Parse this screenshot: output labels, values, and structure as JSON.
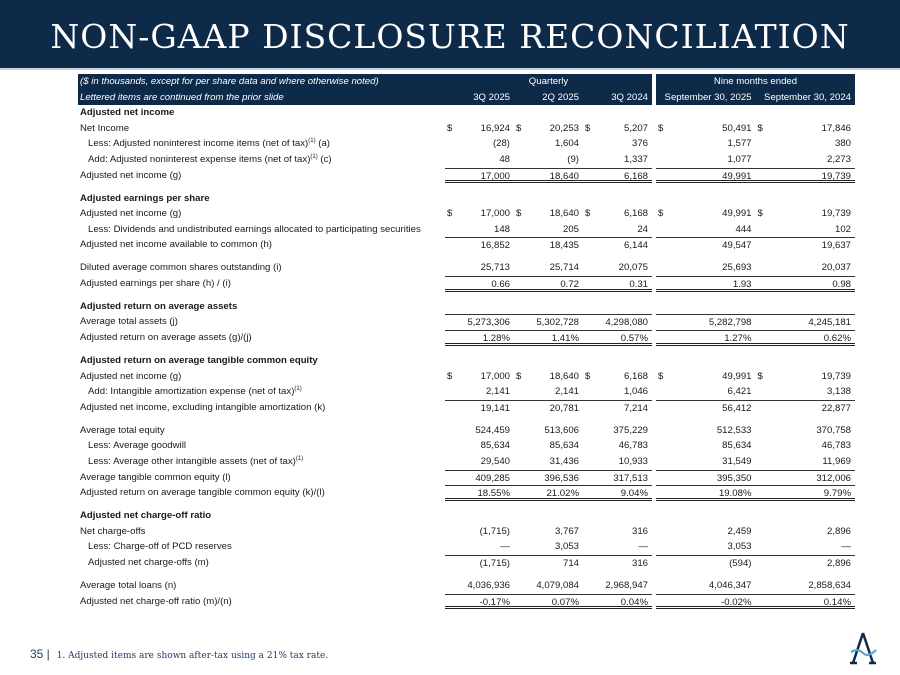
{
  "title": "NON-GAAP DISCLOSURE RECONCILIATION",
  "header": {
    "note1": "($ in thousands, except for per share data and where otherwise noted)",
    "note2": "Lettered items are continued from the prior slide",
    "quarterly": "Quarterly",
    "nine": "Nine months ended",
    "columns": [
      "3Q 2025",
      "2Q 2025",
      "3Q 2024",
      "September 30, 2025",
      "September 30, 2024"
    ]
  },
  "rows": [
    {
      "label": "Adjusted net income",
      "style": "bold"
    },
    {
      "label": "Net Income",
      "dollar": true,
      "values": [
        "16,924",
        "20,253",
        "5,207",
        "50,491",
        "17,846"
      ]
    },
    {
      "label": "Less: Adjusted noninterest income items (net of tax)",
      "sup": "(1)",
      "suffix": " (a)",
      "indent": true,
      "values": [
        "(28)",
        "1,604",
        "376",
        "1,577",
        "380"
      ]
    },
    {
      "label": "Add: Adjusted noninterest expense items (net of tax)",
      "sup": "(1)",
      "suffix": " (c)",
      "indent": true,
      "values": [
        "48",
        "(9)",
        "1,337",
        "1,077",
        "2,273"
      ]
    },
    {
      "label": "Adjusted net income (g)",
      "top": true,
      "dbl": true,
      "values": [
        "17,000",
        "18,640",
        "6,168",
        "49,991",
        "19,739"
      ]
    },
    {
      "spacer": true
    },
    {
      "label": "Adjusted earnings per share",
      "style": "bold"
    },
    {
      "label": "Adjusted net income (g)",
      "dollar": true,
      "values": [
        "17,000",
        "18,640",
        "6,168",
        "49,991",
        "19,739"
      ]
    },
    {
      "label": "Less: Dividends and undistributed earnings allocated to participating securities",
      "indent": true,
      "values": [
        "148",
        "205",
        "24",
        "444",
        "102"
      ]
    },
    {
      "label": "Adjusted net income available to common (h)",
      "top": true,
      "values": [
        "16,852",
        "18,435",
        "6,144",
        "49,547",
        "19,637"
      ]
    },
    {
      "spacer": true
    },
    {
      "label": "Diluted average common shares outstanding (i)",
      "values": [
        "25,713",
        "25,714",
        "20,075",
        "25,693",
        "20,037"
      ]
    },
    {
      "label": "Adjusted earnings per share (h) / (i)",
      "top": true,
      "dbl": true,
      "values": [
        "0.66",
        "0.72",
        "0.31",
        "1.93",
        "0.98"
      ]
    },
    {
      "spacer": true
    },
    {
      "label": "Adjusted return on average assets",
      "style": "bold"
    },
    {
      "label": "Average total assets (j)",
      "top": true,
      "values": [
        "5,273,306",
        "5,302,728",
        "4,298,080",
        "5,282,798",
        "4,245,181"
      ]
    },
    {
      "label": "Adjusted return on average assets (g)/(j)",
      "top": true,
      "dbl": true,
      "values": [
        "1.28%",
        "1.41%",
        "0.57%",
        "1.27%",
        "0.62%"
      ]
    },
    {
      "spacer": true
    },
    {
      "label": "Adjusted return on average tangible common equity",
      "style": "bold"
    },
    {
      "label": "Adjusted net income (g)",
      "dollar": true,
      "values": [
        "17,000",
        "18,640",
        "6,168",
        "49,991",
        "19,739"
      ]
    },
    {
      "label": "Add: Intangible amortization expense (net of tax)",
      "sup": "(1)",
      "indent": true,
      "values": [
        "2,141",
        "2,141",
        "1,046",
        "6,421",
        "3,138"
      ]
    },
    {
      "label": "Adjusted net income, excluding intangible amortization (k)",
      "top": true,
      "values": [
        "19,141",
        "20,781",
        "7,214",
        "56,412",
        "22,877"
      ]
    },
    {
      "spacer": true
    },
    {
      "label": "Average total equity",
      "values": [
        "524,459",
        "513,606",
        "375,229",
        "512,533",
        "370,758"
      ]
    },
    {
      "label": "Less: Average goodwill",
      "indent": true,
      "values": [
        "85,634",
        "85,634",
        "46,783",
        "85,634",
        "46,783"
      ]
    },
    {
      "label": "Less: Average other intangible assets (net of tax)",
      "sup": "(1)",
      "indent": true,
      "values": [
        "29,540",
        "31,436",
        "10,933",
        "31,549",
        "11,969"
      ]
    },
    {
      "label": "Average tangible common equity (l)",
      "top": true,
      "values": [
        "409,285",
        "396,536",
        "317,513",
        "395,350",
        "312,006"
      ]
    },
    {
      "label": "Adjusted return on average tangible common equity (k)/(l)",
      "top": true,
      "dbl": true,
      "values": [
        "18.55%",
        "21.02%",
        "9.04%",
        "19.08%",
        "9.79%"
      ]
    },
    {
      "spacer": true
    },
    {
      "label": "Adjusted net charge-off ratio",
      "style": "bold"
    },
    {
      "label": "Net charge-offs",
      "values": [
        "(1,715)",
        "3,767",
        "316",
        "2,459",
        "2,896"
      ]
    },
    {
      "label": "Less: Charge-off of PCD reserves",
      "indent": true,
      "values": [
        "—",
        "3,053",
        "—",
        "3,053",
        "—"
      ]
    },
    {
      "label": "Adjusted net charge-offs (m)",
      "indent": true,
      "top": true,
      "values": [
        "(1,715)",
        "714",
        "316",
        "(594)",
        "2,896"
      ]
    },
    {
      "spacer": true
    },
    {
      "label": "Average total loans (n)",
      "values": [
        "4,036,936",
        "4,079,084",
        "2,968,947",
        "4,046,347",
        "2,858,634"
      ]
    },
    {
      "label": "Adjusted net charge-off ratio (m)/(n)",
      "top": true,
      "dbl": true,
      "values": [
        "-0.17%",
        "0.07%",
        "0.04%",
        "-0.02%",
        "0.14%"
      ]
    }
  ],
  "dollar_sign": "$",
  "footer": {
    "page": "35 |",
    "note": "1. Adjusted items are shown after-tax using a 21% tax rate."
  },
  "colors": {
    "navy": "#0e2a49",
    "accent": "#5aa6c8"
  }
}
